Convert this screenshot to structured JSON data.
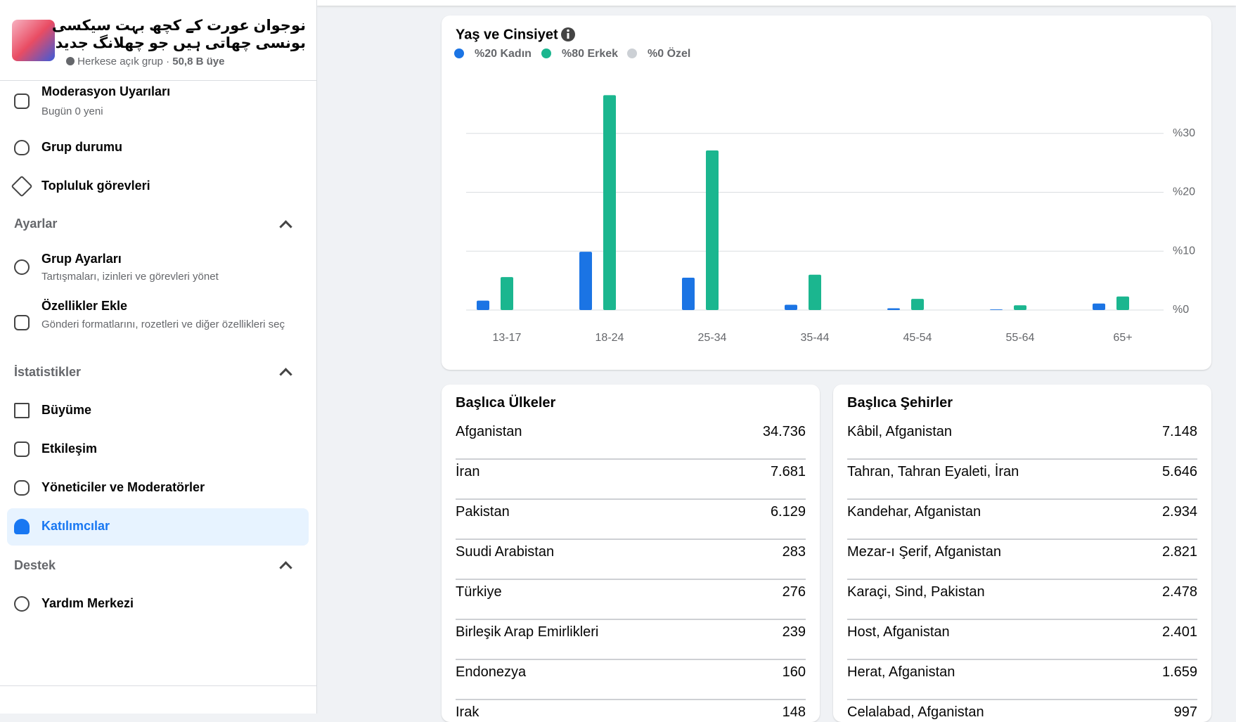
{
  "sidebar": {
    "group_name": [
      "نوجوان عورت کے کچھ بہت سیکسی",
      "بونسی چھاتی ہیں جو چھلانگ جدید"
    ],
    "privacy": "Herkese açık grup",
    "separator": "·",
    "members": "50,8 B üye",
    "items": [
      {
        "label": "Moderasyon Uyarıları",
        "sub": "Bugün 0 yeni"
      },
      {
        "label": "Grup durumu"
      },
      {
        "label": "Topluluk görevleri"
      },
      {
        "label": "Grup Ayarları",
        "sub": "Tartışmaları, izinleri ve görevleri yönet"
      },
      {
        "label": "Özellikler Ekle",
        "sub": "Gönderi formatlarını, rozetleri ve diğer özellikleri seç"
      },
      {
        "label": "Büyüme"
      },
      {
        "label": "Etkileşim"
      },
      {
        "label": "Yöneticiler ve Moderatörler"
      },
      {
        "label": "Katılımcılar"
      },
      {
        "label": "Yardım Merkezi"
      }
    ],
    "sections": [
      "Ayarlar",
      "İstatistikler",
      "Destek"
    ]
  },
  "chart_data": {
    "type": "bar",
    "title": "Yaş ve Cinsiyet",
    "categories": [
      "13-17",
      "18-24",
      "25-34",
      "35-44",
      "45-54",
      "55-64",
      "65+"
    ],
    "series": [
      {
        "name": "%20 Kadın",
        "color": "#1b74e4",
        "values": [
          1.6,
          9.9,
          5.5,
          0.9,
          0.3,
          0.1,
          1.1
        ]
      },
      {
        "name": "%80 Erkek",
        "color": "#1bb68f",
        "values": [
          5.6,
          36.5,
          27.1,
          6.0,
          1.9,
          0.8,
          2.3
        ]
      },
      {
        "name": "%0 Özel",
        "color": "#ccd0d5",
        "values": [
          0,
          0,
          0,
          0,
          0,
          0,
          0
        ]
      }
    ],
    "ylim": [
      0,
      40
    ],
    "yticks": [
      {
        "value": 0,
        "label": "%0"
      },
      {
        "value": 10,
        "label": "%10"
      },
      {
        "value": 20,
        "label": "%20"
      },
      {
        "value": 30,
        "label": "%30"
      }
    ],
    "grid": true
  },
  "countries": {
    "title": "Başlıca Ülkeler",
    "rows": [
      [
        "Afganistan",
        "34.736"
      ],
      [
        "İran",
        "7.681"
      ],
      [
        "Pakistan",
        "6.129"
      ],
      [
        "Suudi Arabistan",
        "283"
      ],
      [
        "Türkiye",
        "276"
      ],
      [
        "Birleşik Arap Emirlikleri",
        "239"
      ],
      [
        "Endonezya",
        "160"
      ],
      [
        "Irak",
        "148"
      ]
    ]
  },
  "cities": {
    "title": "Başlıca Şehirler",
    "rows": [
      [
        "Kâbil, Afganistan",
        "7.148"
      ],
      [
        "Tahran, Tahran Eyaleti, İran",
        "5.646"
      ],
      [
        "Kandehar, Afganistan",
        "2.934"
      ],
      [
        "Mezar-ı Şerif, Afganistan",
        "2.821"
      ],
      [
        "Karaçi, Sind, Pakistan",
        "2.478"
      ],
      [
        "Host, Afganistan",
        "2.401"
      ],
      [
        "Herat, Afganistan",
        "1.659"
      ],
      [
        "Celalabad, Afganistan",
        "997"
      ]
    ]
  }
}
